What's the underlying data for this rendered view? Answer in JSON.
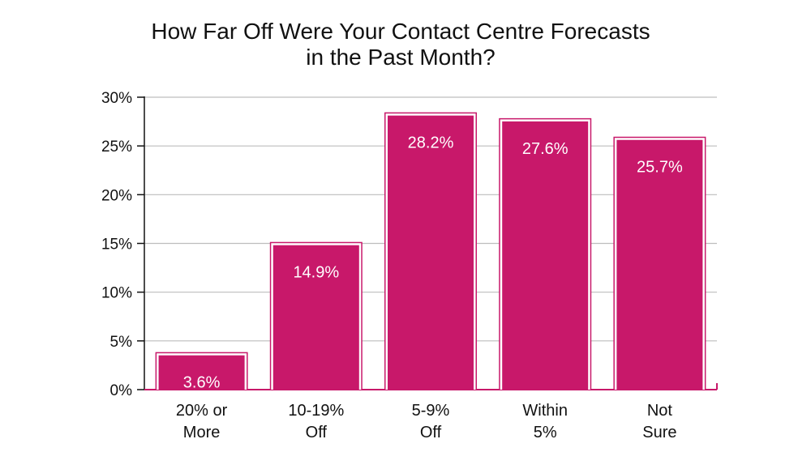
{
  "chart_data": {
    "type": "bar",
    "title": [
      "How Far Off Were Your Contact Centre Forecasts",
      "in the Past Month?"
    ],
    "categories": [
      [
        "20% or",
        "More"
      ],
      [
        "10-19%",
        "Off"
      ],
      [
        "5-9%",
        "Off"
      ],
      [
        "Within",
        "5%"
      ],
      [
        "Not",
        "Sure"
      ]
    ],
    "values": [
      3.6,
      14.9,
      28.2,
      27.6,
      25.7
    ],
    "value_labels": [
      "3.6%",
      "14.9%",
      "28.2%",
      "27.6%",
      "25.7%"
    ],
    "ylim": [
      0,
      30
    ],
    "y_ticks": [
      0,
      5,
      10,
      15,
      20,
      25,
      30
    ],
    "y_tick_labels": [
      "0%",
      "5%",
      "10%",
      "15%",
      "20%",
      "25%",
      "30%"
    ],
    "xlabel": "",
    "ylabel": "",
    "grid": true,
    "colors": {
      "bar_fill": "#c8186a",
      "bar_outline": "#ffffff",
      "bar_shadow": "#c8186a",
      "axis": "#111111",
      "grid": "#bdbdbd",
      "x_axis_line": "#c8186a"
    }
  }
}
